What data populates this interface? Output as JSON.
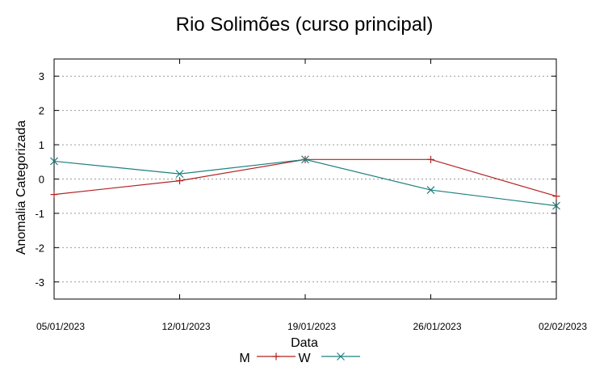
{
  "chart_data": {
    "type": "line",
    "title": "Rio Solimões (curso principal)",
    "xlabel": "Data",
    "ylabel": "Anomalia Categorizada",
    "categories": [
      "05/01/2023",
      "12/01/2023",
      "19/01/2023",
      "26/01/2023",
      "02/02/2023"
    ],
    "yticks": [
      3,
      2,
      1,
      0,
      -1,
      -2,
      -3
    ],
    "ylim": [
      -3.5,
      3.5
    ],
    "grid": "horizontal dotted",
    "legend_position": "bottom",
    "series": [
      {
        "name": "M",
        "color": "#b22222",
        "marker": "plus",
        "values": [
          -0.45,
          -0.05,
          0.57,
          0.57,
          -0.5
        ]
      },
      {
        "name": "W",
        "color": "#1f7f7f",
        "marker": "cross",
        "values": [
          0.52,
          0.15,
          0.57,
          -0.32,
          -0.78
        ]
      }
    ]
  }
}
